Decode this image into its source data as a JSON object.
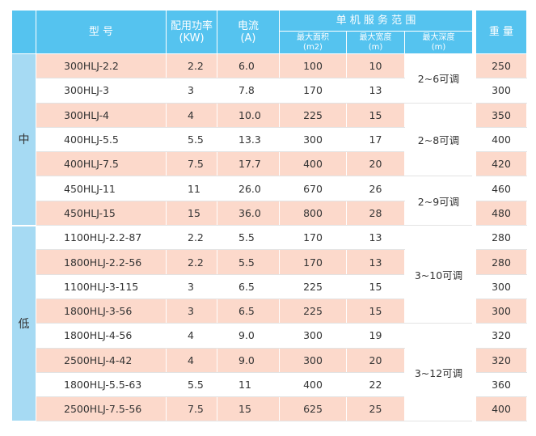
{
  "table": {
    "header": {
      "model": "型  号",
      "power": "配用功率\n(KW)",
      "current": "电流\n(A)",
      "service": "单 机 服 务 范 围",
      "area": "最大面积\n(m2)",
      "width": "最大宽度\n(m)",
      "depth": "最大深度\n(m)",
      "weight": "重 量"
    },
    "groups": [
      "中",
      "低"
    ],
    "depth": [
      "2~6可调",
      "2~8可调",
      "2~9可调",
      "3~10可调",
      "3~12可调"
    ],
    "rows": [
      [
        "300HLJ-2.2",
        "2.2",
        "6.0",
        "100",
        "10",
        "250"
      ],
      [
        "300HLJ-3",
        "3",
        "7.8",
        "170",
        "13",
        "300"
      ],
      [
        "300HLJ-4",
        "4",
        "10.0",
        "225",
        "15",
        "350"
      ],
      [
        "400HLJ-5.5",
        "5.5",
        "13.3",
        "300",
        "17",
        "400"
      ],
      [
        "400HLJ-7.5",
        "7.5",
        "17.7",
        "400",
        "20",
        "420"
      ],
      [
        "450HLJ-11",
        "11",
        "26.0",
        "670",
        "26",
        "460"
      ],
      [
        "450HLJ-15",
        "15",
        "36.0",
        "800",
        "28",
        "480"
      ],
      [
        "1100HLJ-2.2-87",
        "2.2",
        "5.5",
        "170",
        "13",
        "280"
      ],
      [
        "1800HLJ-2.2-56",
        "2.2",
        "5.5",
        "170",
        "13",
        "280"
      ],
      [
        "1100HLJ-3-115",
        "3",
        "6.5",
        "225",
        "15",
        "300"
      ],
      [
        "1800HLJ-3-56",
        "3",
        "6.5",
        "225",
        "15",
        "300"
      ],
      [
        "1800HLJ-4-56",
        "4",
        "9.0",
        "300",
        "19",
        "320"
      ],
      [
        "2500HLJ-4-42",
        "4",
        "9.0",
        "300",
        "20",
        "320"
      ],
      [
        "1800HLJ-5.5-63",
        "5.5",
        "11",
        "400",
        "22",
        "360"
      ],
      [
        "2500HLJ-7.5-56",
        "7.5",
        "15",
        "625",
        "25",
        "400"
      ]
    ]
  }
}
